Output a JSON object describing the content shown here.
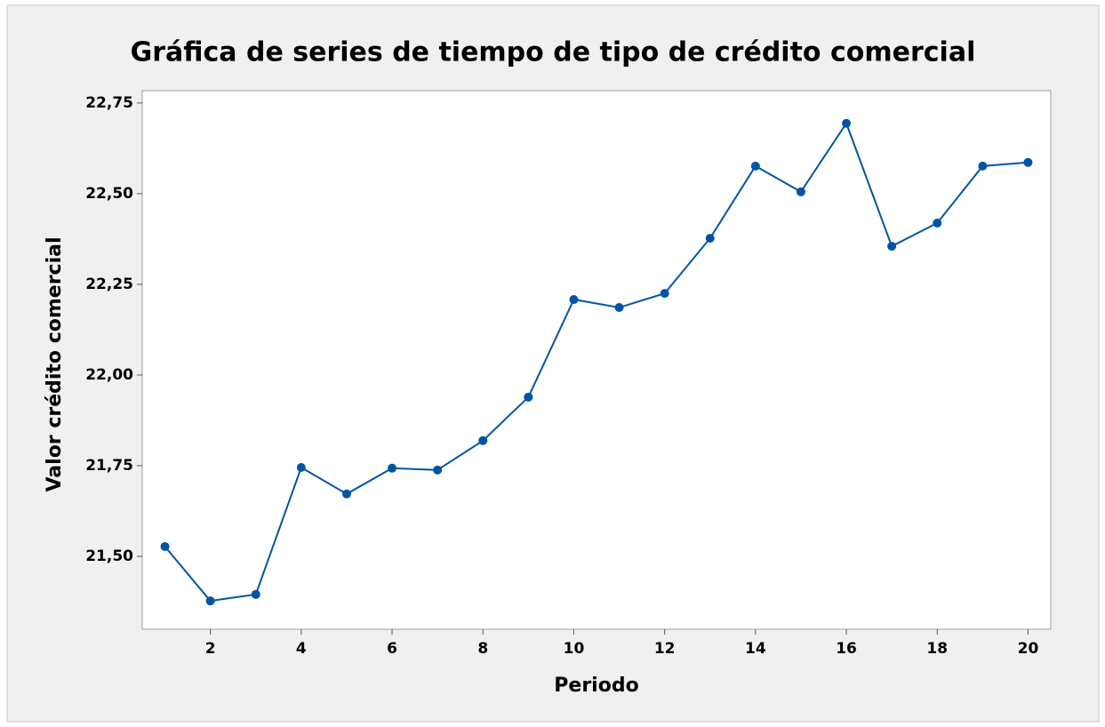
{
  "chart_data": {
    "type": "line",
    "title": "Gráfica de series de tiempo de tipo de crédito comercial",
    "x_label": "Periodo",
    "y_label": "Valor crédito comercial",
    "x": [
      1,
      2,
      3,
      4,
      5,
      6,
      7,
      8,
      9,
      10,
      11,
      12,
      13,
      14,
      15,
      16,
      17,
      18,
      19,
      20
    ],
    "series": [
      {
        "name": "Valor crédito comercial",
        "color": "#0054a6",
        "values": [
          21.527,
          21.377,
          21.395,
          21.745,
          21.672,
          21.743,
          21.738,
          21.819,
          21.939,
          22.208,
          22.186,
          22.225,
          22.377,
          22.576,
          22.505,
          22.694,
          22.355,
          22.419,
          22.576,
          22.586
        ]
      }
    ],
    "xlim": [
      0.5,
      20.5
    ],
    "ylim": [
      21.299,
      22.784
    ],
    "xticks": [
      2,
      4,
      6,
      8,
      10,
      12,
      14,
      16,
      18,
      20
    ],
    "yticks": [
      {
        "value": 21.5,
        "label": "21,50"
      },
      {
        "value": 21.75,
        "label": "21,75"
      },
      {
        "value": 22.0,
        "label": "22,00"
      },
      {
        "value": 22.25,
        "label": "22,25"
      },
      {
        "value": 22.5,
        "label": "22,50"
      },
      {
        "value": 22.75,
        "label": "22,75"
      }
    ]
  }
}
